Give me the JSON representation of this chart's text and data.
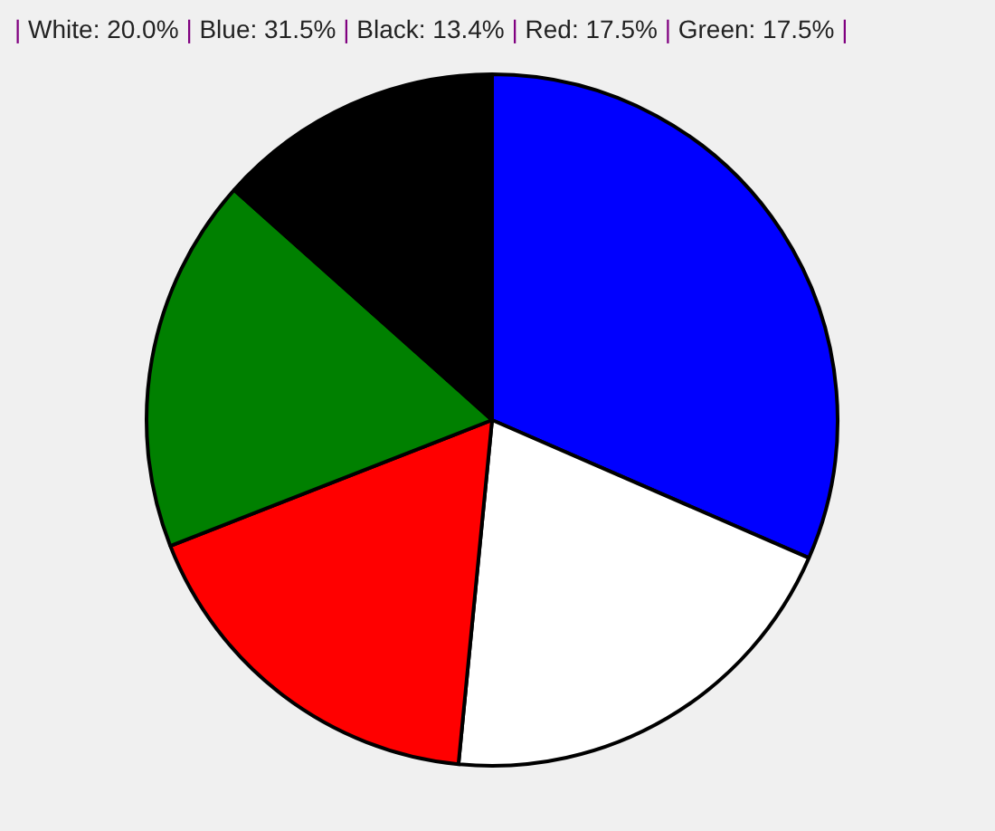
{
  "chart_data": {
    "type": "pie",
    "title": "| White: 20.0% | Blue: 31.5% | Black: 13.4% | Red: 17.5% | Green: 17.5% |",
    "categories": [
      null,
      null,
      null,
      null,
      null
    ],
    "values": [
      31.5,
      20.0,
      17.5,
      17.5,
      13.4
    ],
    "colors": [
      "#0000ff",
      "#ffffff",
      "#ff0000",
      "#008000",
      "#000000"
    ],
    "legend": false
  }
}
